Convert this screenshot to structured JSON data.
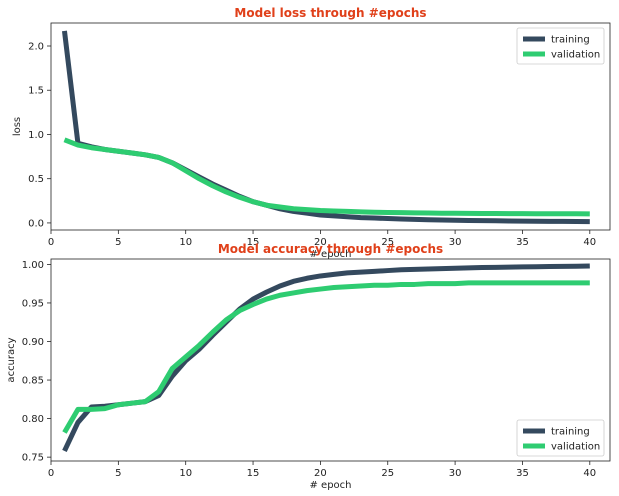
{
  "colors": {
    "title": "#e0401a",
    "training": "#34495e",
    "validation": "#2ecc71"
  },
  "chart_data": [
    {
      "type": "line",
      "title": "Model loss through #epochs",
      "xlabel": "# epoch",
      "ylabel": "loss",
      "xlim": [
        0,
        41.5
      ],
      "ylim": [
        -0.08,
        2.26
      ],
      "xticks": [
        0,
        5,
        10,
        15,
        20,
        25,
        30,
        35,
        40
      ],
      "xtick_labels": [
        "0",
        "5",
        "10",
        "15",
        "20",
        "25",
        "30",
        "35",
        "40"
      ],
      "yticks": [
        0,
        0.5,
        1.0,
        1.5,
        2.0
      ],
      "ytick_labels": [
        "0.0",
        "0.5",
        "1.0",
        "1.5",
        "2.0"
      ],
      "legend_position": "top-right",
      "x": [
        1,
        2,
        3,
        4,
        5,
        6,
        7,
        8,
        9,
        10,
        11,
        12,
        13,
        14,
        15,
        16,
        17,
        18,
        19,
        20,
        21,
        22,
        23,
        24,
        25,
        26,
        27,
        28,
        29,
        30,
        31,
        32,
        33,
        34,
        35,
        36,
        37,
        38,
        39,
        40
      ],
      "series": [
        {
          "name": "training",
          "color_key": "training",
          "values": [
            2.17,
            0.9,
            0.86,
            0.83,
            0.81,
            0.79,
            0.77,
            0.74,
            0.68,
            0.6,
            0.52,
            0.44,
            0.37,
            0.3,
            0.24,
            0.2,
            0.16,
            0.13,
            0.11,
            0.09,
            0.08,
            0.07,
            0.06,
            0.055,
            0.05,
            0.045,
            0.04,
            0.036,
            0.033,
            0.03,
            0.028,
            0.026,
            0.024,
            0.022,
            0.02,
            0.019,
            0.018,
            0.017,
            0.016,
            0.015
          ]
        },
        {
          "name": "validation",
          "color_key": "validation",
          "values": [
            0.94,
            0.88,
            0.85,
            0.83,
            0.81,
            0.79,
            0.77,
            0.74,
            0.68,
            0.59,
            0.5,
            0.42,
            0.35,
            0.29,
            0.24,
            0.2,
            0.18,
            0.16,
            0.15,
            0.14,
            0.135,
            0.13,
            0.125,
            0.12,
            0.118,
            0.116,
            0.114,
            0.112,
            0.11,
            0.11,
            0.108,
            0.107,
            0.106,
            0.105,
            0.105,
            0.104,
            0.104,
            0.103,
            0.103,
            0.102
          ]
        }
      ]
    },
    {
      "type": "line",
      "title": "Model accuracy through #epochs",
      "xlabel": "# epoch",
      "ylabel": "accuracy",
      "xlim": [
        0,
        41.5
      ],
      "ylim": [
        0.745,
        1.007
      ],
      "xticks": [
        0,
        5,
        10,
        15,
        20,
        25,
        30,
        35,
        40
      ],
      "xtick_labels": [
        "0",
        "5",
        "10",
        "15",
        "20",
        "25",
        "30",
        "35",
        "40"
      ],
      "yticks": [
        0.75,
        0.8,
        0.85,
        0.9,
        0.95,
        1.0
      ],
      "ytick_labels": [
        "0.75",
        "0.80",
        "0.85",
        "0.90",
        "0.95",
        "1.00"
      ],
      "legend_position": "bottom-right",
      "x": [
        1,
        2,
        3,
        4,
        5,
        6,
        7,
        8,
        9,
        10,
        11,
        12,
        13,
        14,
        15,
        16,
        17,
        18,
        19,
        20,
        21,
        22,
        23,
        24,
        25,
        26,
        27,
        28,
        29,
        30,
        31,
        32,
        33,
        34,
        35,
        36,
        37,
        38,
        39,
        40
      ],
      "series": [
        {
          "name": "training",
          "color_key": "training",
          "values": [
            0.758,
            0.795,
            0.815,
            0.816,
            0.818,
            0.82,
            0.822,
            0.83,
            0.855,
            0.875,
            0.89,
            0.908,
            0.925,
            0.942,
            0.955,
            0.964,
            0.972,
            0.978,
            0.982,
            0.985,
            0.987,
            0.989,
            0.99,
            0.991,
            0.992,
            0.993,
            0.9935,
            0.994,
            0.9945,
            0.995,
            0.9955,
            0.996,
            0.9962,
            0.9965,
            0.9968,
            0.997,
            0.9972,
            0.9974,
            0.9976,
            0.998
          ]
        },
        {
          "name": "validation",
          "color_key": "validation",
          "values": [
            0.782,
            0.812,
            0.812,
            0.813,
            0.818,
            0.82,
            0.822,
            0.835,
            0.865,
            0.88,
            0.895,
            0.912,
            0.928,
            0.94,
            0.948,
            0.955,
            0.96,
            0.963,
            0.966,
            0.968,
            0.97,
            0.971,
            0.972,
            0.973,
            0.973,
            0.974,
            0.974,
            0.975,
            0.975,
            0.975,
            0.976,
            0.976,
            0.976,
            0.976,
            0.976,
            0.976,
            0.976,
            0.976,
            0.976,
            0.976
          ]
        }
      ]
    }
  ]
}
